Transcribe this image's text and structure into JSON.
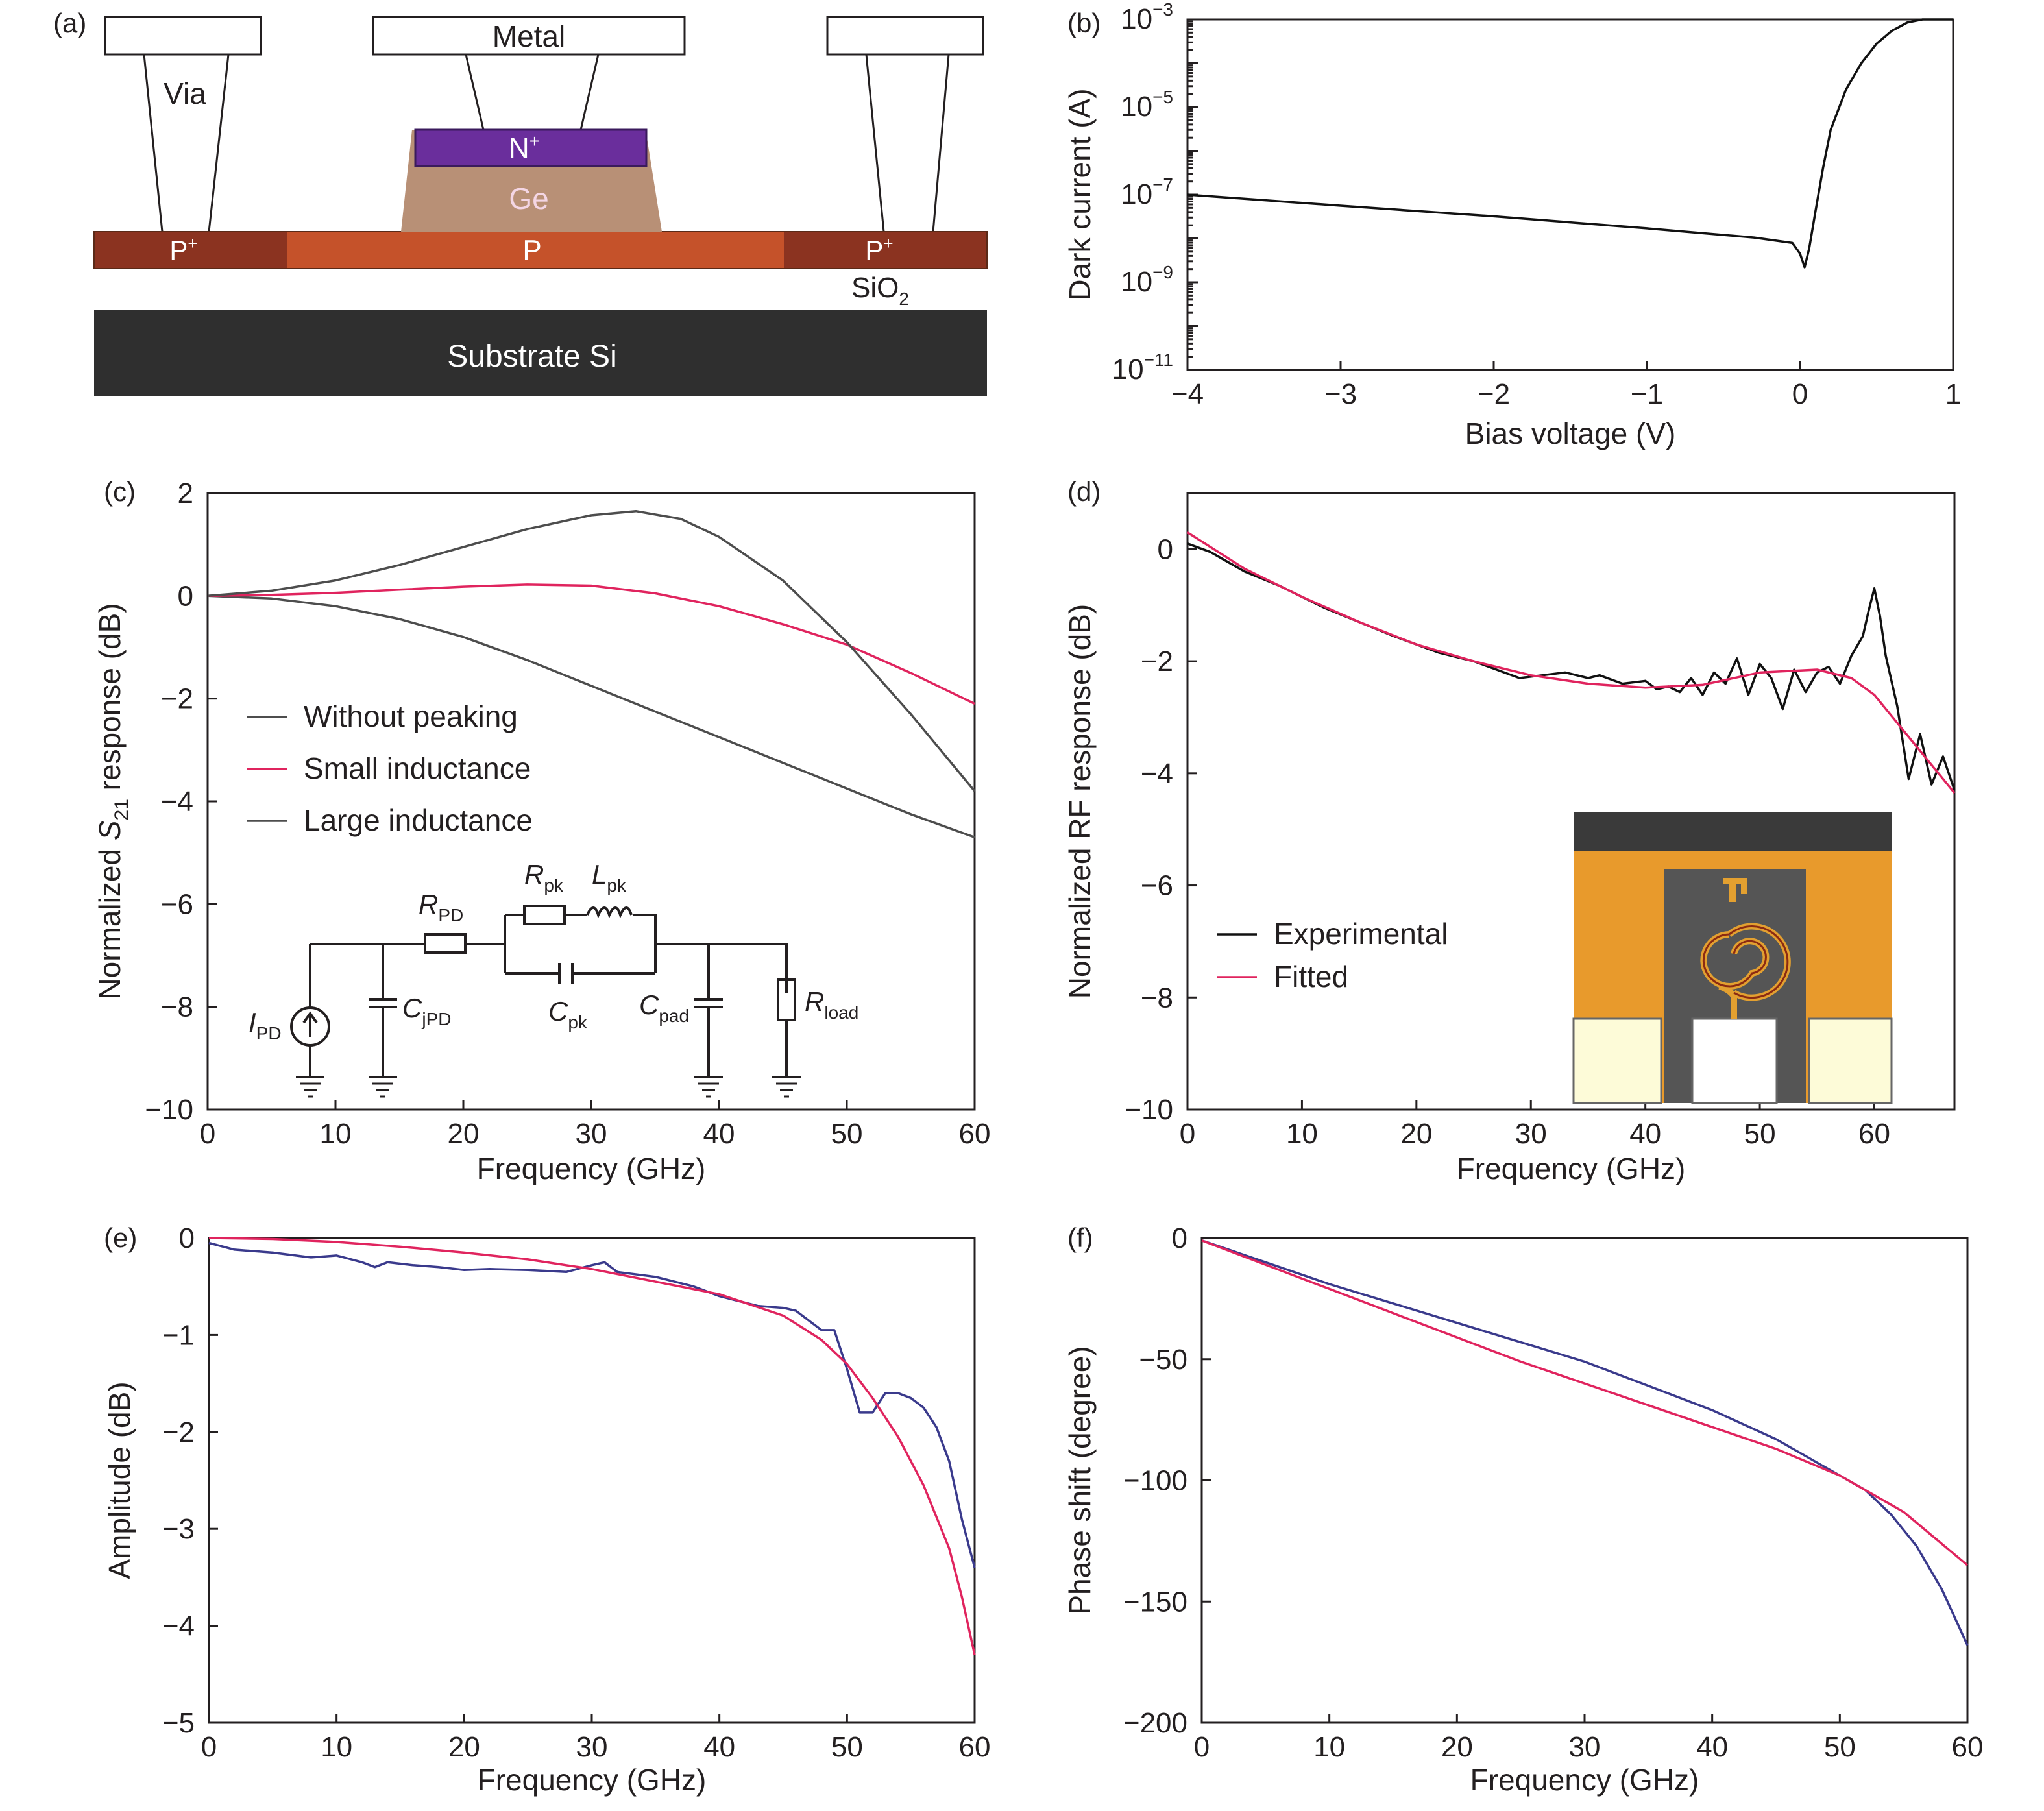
{
  "panels": {
    "a": {
      "label": "(a)",
      "metal": "Metal",
      "via": "Via",
      "n_plus": "N",
      "n_plus_sup": "+",
      "ge": "Ge",
      "p": "P",
      "p_plus": "P",
      "p_plus_sup": "+",
      "sio2": "SiO",
      "sio2_sub": "2",
      "substrate": "Substrate Si",
      "colors": {
        "n_plus": "#6a2e9c",
        "ge": "#b89076",
        "p": "#c5522a",
        "p_plus": "#8b3320",
        "substrate": "#2f2f2f"
      }
    },
    "b": {
      "label": "(b)"
    },
    "c": {
      "label": "(c)",
      "circuit": {
        "i_pd": "I",
        "i_pd_sub": "PD",
        "c_jpd": "C",
        "c_jpd_sub": "jPD",
        "r_pd": "R",
        "r_pd_sub": "PD",
        "r_pk": "R",
        "r_pk_sub": "pk",
        "l_pk": "L",
        "l_pk_sub": "pk",
        "c_pk": "C",
        "c_pk_sub": "pk",
        "c_pad": "C",
        "c_pad_sub": "pad",
        "r_load": "R",
        "r_load_sub": "load"
      }
    },
    "d": {
      "label": "(d)",
      "inset_icon": "spiral-inductor-micrograph"
    },
    "e": {
      "label": "(e)"
    },
    "f": {
      "label": "(f)"
    }
  },
  "chart_data": [
    {
      "id": "b",
      "type": "line",
      "xlabel": "Bias voltage (V)",
      "ylabel": "Dark current (A)",
      "yscale": "log",
      "xlim": [
        -4,
        1
      ],
      "ylim": [
        1e-11,
        0.001
      ],
      "xticks": [
        -4,
        -3,
        -2,
        -1,
        0,
        1
      ],
      "xtick_labels": [
        "−4",
        "−3",
        "−2",
        "−1",
        "0",
        "1"
      ],
      "ytick_labels": [
        {
          "base": "10",
          "exp": "−3",
          "value": 0.001
        },
        {
          "base": "10",
          "exp": "−5",
          "value": 1e-05
        },
        {
          "base": "10",
          "exp": "−7",
          "value": 1e-07
        },
        {
          "base": "10",
          "exp": "−9",
          "value": 1e-09
        },
        {
          "base": "10",
          "exp": "−11",
          "value": 1e-11
        }
      ],
      "series": [
        {
          "color": "#111111",
          "x": [
            -4,
            -3,
            -2,
            -1,
            -0.3,
            -0.05,
            0.0,
            0.03,
            0.06,
            0.1,
            0.15,
            0.2,
            0.3,
            0.4,
            0.5,
            0.6,
            0.7,
            0.8,
            1.0
          ],
          "y": [
            1e-07,
            5.6e-08,
            3.2e-08,
            1.7e-08,
            1.05e-08,
            7.9e-09,
            4.5e-09,
            2.2e-09,
            6e-09,
            4e-08,
            4e-07,
            3e-06,
            2.5e-05,
            0.0001,
            0.00028,
            0.00055,
            0.00085,
            0.001,
            0.001
          ]
        }
      ]
    },
    {
      "id": "c",
      "type": "line",
      "xlabel": "Frequency (GHz)",
      "ylabel_prefix": "Normalized ",
      "ylabel_sym": "S",
      "ylabel_sub": "21",
      "ylabel_suffix": " response (dB)",
      "xlim": [
        0,
        60
      ],
      "ylim": [
        -10,
        2
      ],
      "xticks": [
        0,
        10,
        20,
        30,
        40,
        50,
        60
      ],
      "xtick_labels": [
        "0",
        "10",
        "20",
        "30",
        "40",
        "50",
        "60"
      ],
      "yticks": [
        2,
        0,
        -2,
        -4,
        -6,
        -8,
        -10
      ],
      "ytick_labels": [
        "2",
        "0",
        "−2",
        "−4",
        "−6",
        "−8",
        "−10"
      ],
      "legend_position": "left-middle",
      "series": [
        {
          "name": "Without peaking",
          "color": "#4d4d4d",
          "x": [
            0,
            5,
            10,
            15,
            20,
            25,
            30,
            35,
            40,
            45,
            50,
            55,
            60
          ],
          "y": [
            0,
            -0.05,
            -0.2,
            -0.45,
            -0.8,
            -1.25,
            -1.75,
            -2.25,
            -2.75,
            -3.25,
            -3.75,
            -4.25,
            -4.7
          ]
        },
        {
          "name": "Small inductance",
          "color": "#e0245e",
          "x": [
            0,
            5,
            10,
            15,
            20,
            25,
            30,
            35,
            40,
            45,
            50,
            55,
            60
          ],
          "y": [
            0,
            0.02,
            0.06,
            0.12,
            0.18,
            0.22,
            0.2,
            0.05,
            -0.2,
            -0.55,
            -0.95,
            -1.5,
            -2.1
          ]
        },
        {
          "name": "Large inductance",
          "color": "#4d4d4d",
          "highlight_color": "#4a5fb0",
          "x": [
            0,
            5,
            10,
            15,
            20,
            25,
            30,
            33.5,
            37,
            40,
            45,
            50,
            55,
            60
          ],
          "y": [
            0,
            0.1,
            0.3,
            0.6,
            0.95,
            1.3,
            1.57,
            1.65,
            1.5,
            1.15,
            0.3,
            -0.9,
            -2.3,
            -3.8
          ]
        }
      ]
    },
    {
      "id": "d",
      "type": "line",
      "xlabel": "Frequency (GHz)",
      "ylabel": "Normalized RF response (dB)",
      "xlim": [
        0,
        67
      ],
      "ylim": [
        -10,
        1
      ],
      "xticks": [
        0,
        10,
        20,
        30,
        40,
        50,
        60
      ],
      "xtick_labels": [
        "0",
        "10",
        "20",
        "30",
        "40",
        "50",
        "60"
      ],
      "yticks": [
        0,
        -2,
        -4,
        -6,
        -8,
        -10
      ],
      "ytick_labels": [
        "0",
        "−2",
        "−4",
        "−6",
        "−8",
        "−10"
      ],
      "legend_position": "bottom-left",
      "series": [
        {
          "name": "Experimental",
          "color": "#111111",
          "x": [
            0,
            2,
            5,
            8,
            10,
            12,
            15,
            18,
            20,
            22,
            25,
            27,
            29,
            31,
            33,
            35,
            36,
            38,
            40,
            41,
            42,
            43,
            44,
            45,
            46,
            47,
            48,
            49,
            50,
            51,
            52,
            53,
            54,
            55,
            56,
            57,
            58,
            59,
            59.5,
            60,
            60.5,
            61,
            62,
            63,
            64,
            65,
            66,
            67
          ],
          "y": [
            0.1,
            -0.05,
            -0.4,
            -0.65,
            -0.85,
            -1.05,
            -1.3,
            -1.55,
            -1.7,
            -1.85,
            -2.0,
            -2.15,
            -2.3,
            -2.25,
            -2.2,
            -2.3,
            -2.25,
            -2.4,
            -2.35,
            -2.5,
            -2.45,
            -2.55,
            -2.3,
            -2.6,
            -2.2,
            -2.4,
            -1.95,
            -2.6,
            -2.05,
            -2.3,
            -2.85,
            -2.15,
            -2.55,
            -2.2,
            -2.1,
            -2.4,
            -1.9,
            -1.55,
            -1.1,
            -0.7,
            -1.2,
            -1.9,
            -2.8,
            -4.1,
            -3.3,
            -4.2,
            -3.7,
            -4.3
          ]
        },
        {
          "name": "Fitted",
          "color": "#e0245e",
          "x": [
            0,
            5,
            10,
            15,
            20,
            25,
            30,
            35,
            40,
            45,
            50,
            55,
            58,
            60,
            62,
            64,
            67
          ],
          "y": [
            0.3,
            -0.35,
            -0.85,
            -1.3,
            -1.7,
            -2.0,
            -2.25,
            -2.4,
            -2.47,
            -2.42,
            -2.2,
            -2.15,
            -2.3,
            -2.6,
            -3.1,
            -3.6,
            -4.35
          ]
        }
      ]
    },
    {
      "id": "e",
      "type": "line",
      "xlabel": "Frequency (GHz)",
      "ylabel": "Amplitude (dB)",
      "xlim": [
        0,
        60
      ],
      "ylim": [
        -5,
        0
      ],
      "xticks": [
        0,
        10,
        20,
        30,
        40,
        50,
        60
      ],
      "xtick_labels": [
        "0",
        "10",
        "20",
        "30",
        "40",
        "50",
        "60"
      ],
      "yticks": [
        0,
        -1,
        -2,
        -3,
        -4,
        -5
      ],
      "ytick_labels": [
        "0",
        "−1",
        "−2",
        "−3",
        "−4",
        "−5"
      ],
      "series": [
        {
          "color": "#3a3a8c",
          "x": [
            0,
            2,
            5,
            8,
            10,
            12,
            13,
            14,
            16,
            18,
            20,
            22,
            25,
            28,
            30,
            31,
            32,
            35,
            38,
            40,
            43,
            45,
            46,
            47,
            48,
            49,
            50,
            51,
            52,
            53,
            54,
            55,
            56,
            57,
            58,
            59,
            60
          ],
          "y": [
            -0.05,
            -0.12,
            -0.15,
            -0.2,
            -0.18,
            -0.25,
            -0.3,
            -0.25,
            -0.28,
            -0.3,
            -0.33,
            -0.32,
            -0.33,
            -0.35,
            -0.28,
            -0.25,
            -0.35,
            -0.4,
            -0.5,
            -0.6,
            -0.7,
            -0.72,
            -0.75,
            -0.85,
            -0.95,
            -0.95,
            -1.35,
            -1.8,
            -1.8,
            -1.6,
            -1.6,
            -1.65,
            -1.75,
            -1.95,
            -2.3,
            -2.9,
            -3.4
          ]
        },
        {
          "color": "#e0245e",
          "x": [
            0,
            5,
            10,
            15,
            20,
            25,
            30,
            35,
            40,
            45,
            48,
            50,
            52,
            54,
            56,
            58,
            59,
            60
          ],
          "y": [
            0.0,
            -0.01,
            -0.04,
            -0.09,
            -0.15,
            -0.22,
            -0.32,
            -0.45,
            -0.58,
            -0.8,
            -1.05,
            -1.3,
            -1.65,
            -2.05,
            -2.55,
            -3.2,
            -3.7,
            -4.3
          ]
        }
      ]
    },
    {
      "id": "f",
      "type": "line",
      "xlabel": "Frequency (GHz)",
      "ylabel": "Phase shift (degree)",
      "xlim": [
        0,
        60
      ],
      "ylim": [
        -200,
        0
      ],
      "xticks": [
        0,
        10,
        20,
        30,
        40,
        50,
        60
      ],
      "xtick_labels": [
        "0",
        "10",
        "20",
        "30",
        "40",
        "50",
        "60"
      ],
      "yticks": [
        0,
        -50,
        -100,
        -150,
        -200
      ],
      "ytick_labels": [
        "0",
        "−50",
        "−100",
        "−150",
        "−200"
      ],
      "series": [
        {
          "color": "#3a3a8c",
          "x": [
            0,
            5,
            10,
            15,
            20,
            25,
            30,
            35,
            40,
            45,
            48,
            50,
            52,
            54,
            56,
            58,
            60
          ],
          "y": [
            -1,
            -10,
            -19,
            -27,
            -35,
            -43,
            -51,
            -61,
            -71,
            -83,
            -92,
            -98,
            -104,
            -114,
            -127,
            -145,
            -168
          ]
        },
        {
          "color": "#e0245e",
          "x": [
            0,
            5,
            10,
            15,
            20,
            25,
            30,
            35,
            40,
            45,
            50,
            55,
            60
          ],
          "y": [
            -1,
            -11,
            -21,
            -31,
            -41,
            -51,
            -60,
            -69,
            -78,
            -87,
            -98,
            -113,
            -135
          ]
        }
      ]
    }
  ]
}
